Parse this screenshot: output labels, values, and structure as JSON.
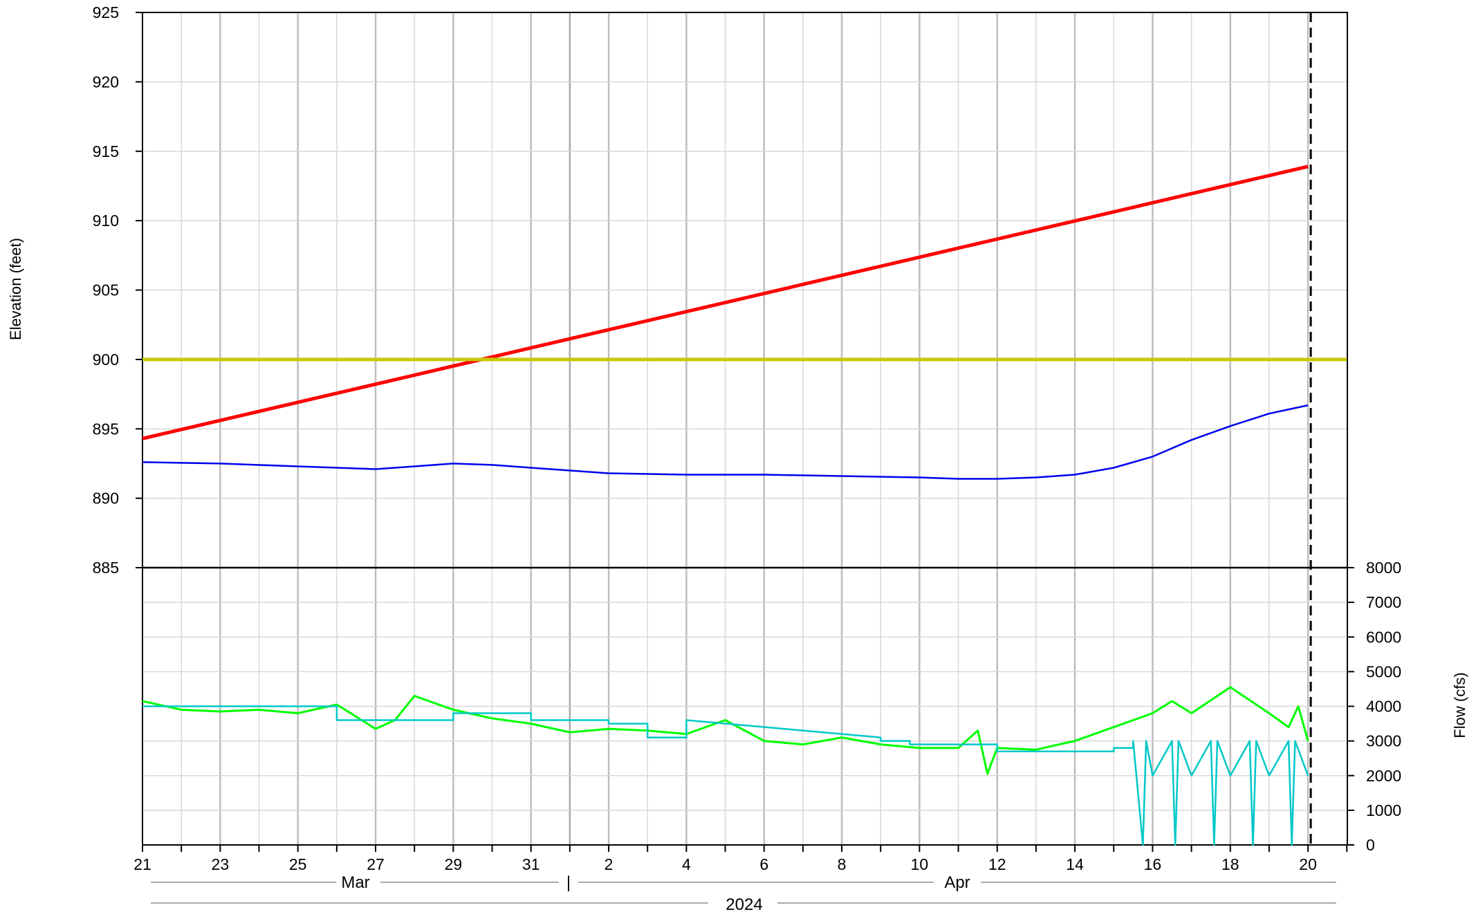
{
  "chart_data": [
    {
      "type": "line",
      "title": "",
      "ylabel": "Elevation (feet)",
      "ylim": [
        885,
        925
      ],
      "yticks": [
        925,
        920,
        915,
        910,
        905,
        900,
        895,
        890,
        885
      ],
      "x_domain": [
        "2024-03-21",
        "2024-04-21"
      ],
      "grid": true,
      "series": [
        {
          "color": "#ff0000",
          "x": [
            "2024-03-21",
            "2024-04-20"
          ],
          "values": [
            894.3,
            913.9
          ]
        },
        {
          "color": "#c8c800",
          "x": [
            "2024-03-21",
            "2024-04-21"
          ],
          "values": [
            900.0,
            900.0
          ]
        },
        {
          "color": "#0000ee",
          "x": [
            "2024-03-21",
            "2024-03-23",
            "2024-03-25",
            "2024-03-27",
            "2024-03-28",
            "2024-03-29",
            "2024-03-30",
            "2024-03-31",
            "2024-04-02",
            "2024-04-04",
            "2024-04-06",
            "2024-04-08",
            "2024-04-10",
            "2024-04-11",
            "2024-04-12",
            "2024-04-13",
            "2024-04-14",
            "2024-04-15",
            "2024-04-16",
            "2024-04-17",
            "2024-04-18",
            "2024-04-19",
            "2024-04-19 12:00",
            "2024-04-20"
          ],
          "values": [
            892.6,
            892.5,
            892.3,
            892.1,
            892.3,
            892.5,
            892.4,
            892.2,
            891.8,
            891.7,
            891.7,
            891.6,
            891.5,
            891.4,
            891.4,
            891.5,
            891.7,
            892.2,
            893.0,
            894.2,
            895.2,
            896.1,
            896.4,
            896.7
          ]
        }
      ]
    },
    {
      "type": "line",
      "title": "",
      "ylabel": "Flow (cfs)",
      "ylim": [
        0,
        8000
      ],
      "yticks": [
        8000,
        7000,
        6000,
        5000,
        4000,
        3000,
        2000,
        1000,
        0
      ],
      "xticks": [
        "21",
        "23",
        "25",
        "27",
        "29",
        "31",
        "2",
        "4",
        "6",
        "8",
        "10",
        "12",
        "14",
        "16",
        "18",
        "20"
      ],
      "x_group_labels": {
        "month_left": "Mar",
        "month_right": "Apr",
        "separator": "|",
        "year": "2024"
      },
      "grid": true,
      "series": [
        {
          "color": "#00ff00",
          "x": [
            "2024-03-21",
            "2024-03-22",
            "2024-03-23",
            "2024-03-24",
            "2024-03-25",
            "2024-03-26",
            "2024-03-27",
            "2024-03-27 12:00",
            "2024-03-28",
            "2024-03-29",
            "2024-03-30",
            "2024-03-31",
            "2024-04-01",
            "2024-04-02",
            "2024-04-03",
            "2024-04-04",
            "2024-04-05",
            "2024-04-06",
            "2024-04-07",
            "2024-04-08",
            "2024-04-09",
            "2024-04-10",
            "2024-04-11",
            "2024-04-11 12:00",
            "2024-04-11 18:00",
            "2024-04-12",
            "2024-04-13",
            "2024-04-14",
            "2024-04-15",
            "2024-04-16",
            "2024-04-16 12:00",
            "2024-04-17",
            "2024-04-18",
            "2024-04-19",
            "2024-04-19 12:00",
            "2024-04-19 18:00",
            "2024-04-20"
          ],
          "values": [
            4150,
            3900,
            3850,
            3900,
            3800,
            4050,
            3350,
            3600,
            4300,
            3900,
            3650,
            3500,
            3250,
            3350,
            3300,
            3200,
            3600,
            3000,
            2900,
            3100,
            2900,
            2800,
            2800,
            3300,
            2050,
            2800,
            2750,
            3000,
            3400,
            3800,
            4150,
            3800,
            4550,
            3800,
            3400,
            4000,
            3000
          ]
        },
        {
          "color": "#00c8c8",
          "x": [
            "2024-03-21",
            "2024-03-26",
            "2024-03-26",
            "2024-03-29",
            "2024-03-29",
            "2024-03-31",
            "2024-03-31",
            "2024-04-02",
            "2024-04-02",
            "2024-04-03",
            "2024-04-03",
            "2024-04-04",
            "2024-04-04",
            "2024-04-09",
            "2024-04-09",
            "2024-04-09 18:00",
            "2024-04-09 18:00",
            "2024-04-12",
            "2024-04-12",
            "2024-04-15",
            "2024-04-15",
            "2024-04-15 12:00",
            "2024-04-15 12:00",
            "2024-04-15 18:00",
            "2024-04-15 20:00",
            "2024-04-16",
            "2024-04-16 12:00",
            "2024-04-16 14:00",
            "2024-04-16 16:00",
            "2024-04-17",
            "2024-04-17 12:00",
            "2024-04-17 14:00",
            "2024-04-17 16:00",
            "2024-04-18",
            "2024-04-18 12:00",
            "2024-04-18 14:00",
            "2024-04-18 16:00",
            "2024-04-19",
            "2024-04-19 12:00",
            "2024-04-19 14:00",
            "2024-04-19 16:00",
            "2024-04-20"
          ],
          "values": [
            4000,
            4000,
            3600,
            3600,
            3800,
            3800,
            3600,
            3600,
            3500,
            3500,
            3100,
            3100,
            3600,
            3100,
            3000,
            3000,
            2900,
            2900,
            2700,
            2700,
            2800,
            2800,
            3000,
            0,
            3000,
            2000,
            3000,
            0,
            3000,
            2000,
            3000,
            0,
            3000,
            2000,
            3000,
            0,
            3000,
            2000,
            3000,
            0,
            3000,
            2000
          ]
        }
      ]
    }
  ]
}
